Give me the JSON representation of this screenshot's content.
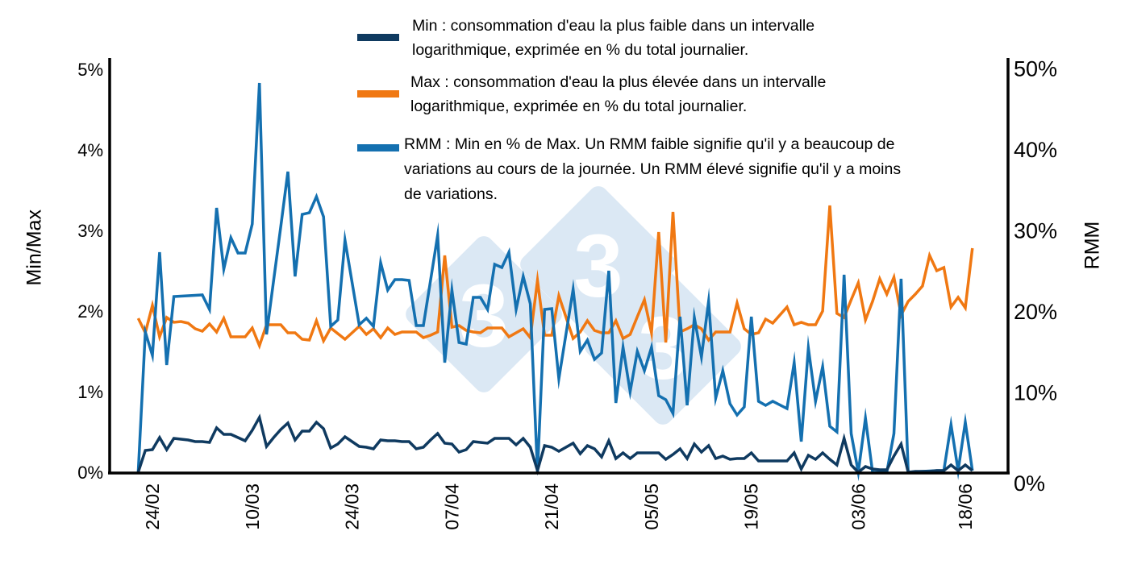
{
  "colors": {
    "min": "#0f3a60",
    "max": "#f07812",
    "rmm": "#1470b0",
    "axis": "#000000",
    "watermark": "#dbe8f4"
  },
  "watermark": {
    "logo_text": "3"
  },
  "legend": [
    {
      "key": "min",
      "label_lines": [
        "Min : consommation d'eau la plus faible dans un intervalle",
        "logarithmique, exprimée en % du total journalier."
      ]
    },
    {
      "key": "max",
      "label_lines": [
        "Max : consommation d'eau la plus élevée dans un intervalle",
        "logarithmique, exprimée en % du total journalier."
      ]
    },
    {
      "key": "rmm",
      "label_lines": [
        "RMM : Min en % de Max. Un RMM faible signifie qu'il y a beaucoup de",
        "variations au cours de la journée. Un RMM élevé signifie qu'il y a moins",
        "de variations."
      ]
    }
  ],
  "chart_data": {
    "type": "line",
    "legend_position": "top",
    "grid": false,
    "xlabel": "",
    "ylabel_left": "Min/Max",
    "ylabel_right": "RMM",
    "xlim": [
      "18/02",
      "24/06"
    ],
    "ylim_left": [
      0,
      5
    ],
    "ylim_right": [
      0,
      50
    ],
    "x_ticks": [
      "24/02",
      "10/03",
      "24/03",
      "07/04",
      "21/04",
      "05/05",
      "19/05",
      "03/06",
      "18/06"
    ],
    "y_ticks_left": [
      "0%",
      "1%",
      "2%",
      "3%",
      "4%",
      "5%"
    ],
    "y_ticks_right": [
      "0%",
      "10%",
      "20%",
      "30%",
      "40%",
      "50%"
    ],
    "x": [
      "22/02",
      "23/02",
      "24/02",
      "25/02",
      "26/02",
      "27/02",
      "28/02",
      "01/03",
      "02/03",
      "03/03",
      "04/03",
      "05/03",
      "06/03",
      "07/03",
      "08/03",
      "09/03",
      "10/03",
      "11/03",
      "12/03",
      "13/03",
      "14/03",
      "15/03",
      "16/03",
      "17/03",
      "18/03",
      "19/03",
      "20/03",
      "21/03",
      "22/03",
      "23/03",
      "25/03",
      "26/03",
      "27/03",
      "28/03",
      "29/03",
      "30/03",
      "31/03",
      "01/04",
      "02/04",
      "03/04",
      "04/04",
      "05/04",
      "06/04",
      "07/04",
      "08/04",
      "09/04",
      "10/04",
      "11/04",
      "12/04",
      "13/04",
      "14/04",
      "15/04",
      "16/04",
      "17/04",
      "18/04",
      "19/04",
      "20/04",
      "21/04",
      "22/04",
      "24/04",
      "25/04",
      "26/04",
      "27/04",
      "28/04",
      "29/04",
      "30/04",
      "01/05",
      "02/05",
      "03/05",
      "04/05",
      "05/05",
      "06/05",
      "07/05",
      "08/05",
      "09/05",
      "10/05",
      "11/05",
      "12/05",
      "13/05",
      "14/05",
      "15/05",
      "16/05",
      "17/05",
      "18/05",
      "19/05",
      "20/05",
      "21/05",
      "22/05",
      "24/05",
      "25/05",
      "26/05",
      "27/05",
      "28/05",
      "29/05",
      "30/05",
      "31/05",
      "01/06",
      "02/06",
      "03/06",
      "04/06",
      "05/06",
      "06/06",
      "07/06",
      "08/06",
      "09/06",
      "10/06",
      "11/06",
      "12/06",
      "13/06",
      "14/06",
      "15/06",
      "16/06",
      "17/06",
      "18/06",
      "19/06"
    ],
    "series": [
      {
        "name": "Min",
        "axis": "left",
        "unit": "%",
        "values": [
          0,
          0.27,
          0.28,
          0.43,
          0.28,
          0.42,
          0.41,
          0.4,
          0.38,
          0.38,
          0.37,
          0.55,
          0.47,
          0.47,
          0.43,
          0.39,
          0.52,
          0.68,
          0.32,
          0.43,
          0.53,
          0.61,
          0.4,
          0.51,
          0.51,
          0.62,
          0.54,
          0.3,
          0.35,
          0.44,
          0.32,
          0.31,
          0.29,
          0.4,
          0.39,
          0.39,
          0.38,
          0.38,
          0.29,
          0.31,
          0.4,
          0.48,
          0.36,
          0.35,
          0.25,
          0.28,
          0.38,
          0.37,
          0.36,
          0.42,
          0.42,
          0.42,
          0.34,
          0.42,
          0.31,
          0.02,
          0.33,
          0.31,
          0.26,
          0.36,
          0.23,
          0.33,
          0.29,
          0.19,
          0.39,
          0.17,
          0.24,
          0.17,
          0.24,
          0.24,
          0.24,
          0.24,
          0.16,
          0.22,
          0.29,
          0.17,
          0.35,
          0.25,
          0.33,
          0.17,
          0.2,
          0.16,
          0.17,
          0.17,
          0.24,
          0.14,
          0.14,
          0.14,
          0.14,
          0.24,
          0.04,
          0.21,
          0.16,
          0.24,
          0.16,
          0.09,
          0.42,
          0.09,
          0,
          0.07,
          0.04,
          0.03,
          0.03,
          0.2,
          0.35,
          0,
          0.01,
          0.01,
          0.01,
          0.02,
          0.02,
          0.09,
          0.02,
          0.09,
          0.02
        ]
      },
      {
        "name": "Max",
        "axis": "left",
        "unit": "%",
        "values": [
          1.91,
          1.73,
          2.07,
          1.68,
          1.92,
          1.86,
          1.87,
          1.85,
          1.78,
          1.75,
          1.84,
          1.74,
          1.91,
          1.68,
          1.68,
          1.68,
          1.79,
          1.57,
          1.83,
          1.83,
          1.83,
          1.73,
          1.73,
          1.65,
          1.64,
          1.88,
          1.63,
          1.79,
          1.72,
          1.65,
          1.81,
          1.71,
          1.78,
          1.67,
          1.79,
          1.71,
          1.74,
          1.74,
          1.74,
          1.67,
          1.7,
          1.74,
          2.69,
          1.8,
          1.82,
          1.76,
          1.74,
          1.73,
          1.79,
          1.79,
          1.79,
          1.68,
          1.73,
          1.78,
          1.67,
          2.38,
          1.7,
          1.7,
          2.19,
          1.66,
          1.74,
          1.88,
          1.76,
          1.73,
          1.73,
          1.88,
          1.66,
          1.71,
          1.93,
          2.14,
          1.73,
          2.98,
          1.61,
          3.23,
          1.74,
          1.78,
          1.83,
          1.78,
          1.64,
          1.74,
          1.74,
          1.74,
          2.1,
          1.78,
          1.71,
          1.73,
          1.9,
          1.85,
          2.05,
          1.83,
          1.86,
          1.83,
          1.83,
          2.0,
          3.31,
          1.97,
          1.92,
          2.14,
          2.35,
          1.89,
          2.12,
          2.4,
          2.21,
          2.42,
          1.95,
          2.12,
          2.21,
          2.31,
          2.69,
          2.5,
          2.54,
          2.05,
          2.17,
          2.04,
          2.78
        ]
      },
      {
        "name": "RMM",
        "axis": "right",
        "unit": "%",
        "values": [
          0,
          17.4,
          14.5,
          27.3,
          13.3,
          21.8,
          21.85,
          21.9,
          21.95,
          22.0,
          20.2,
          32.8,
          25.2,
          29.1,
          27.2,
          27.2,
          30.8,
          48.3,
          17.1,
          23.8,
          30.5,
          37.3,
          24.3,
          32.0,
          32.2,
          34.2,
          31.7,
          18.1,
          18.9,
          28.8,
          18.3,
          19.1,
          18.1,
          26.0,
          22.6,
          23.9,
          23.9,
          23.8,
          18.2,
          18.2,
          23.8,
          29.4,
          13.6,
          22.6,
          16.1,
          15.9,
          21.7,
          21.7,
          20.2,
          25.8,
          25.4,
          27.3,
          20.2,
          24.3,
          20.9,
          0,
          20.2,
          20.3,
          11.6,
          22.7,
          15.0,
          16.4,
          14.0,
          14.8,
          25.0,
          8.6,
          15.5,
          10.0,
          15.0,
          12.6,
          15.5,
          9.5,
          9.0,
          7.3,
          19.3,
          8.3,
          19.2,
          14.3,
          21.2,
          9.2,
          12.6,
          8.5,
          7.1,
          8.1,
          19.3,
          8.8,
          8.3,
          8.8,
          7.9,
          13.6,
          3.8,
          15.4,
          8.8,
          13.1,
          5.7,
          5.0,
          24.5,
          4.8,
          0,
          6.7,
          0,
          0,
          0,
          4.8,
          24.0,
          0,
          0.05,
          0.1,
          0.15,
          0.2,
          0.2,
          5.9,
          0.2,
          6.2,
          0.2
        ]
      }
    ]
  }
}
